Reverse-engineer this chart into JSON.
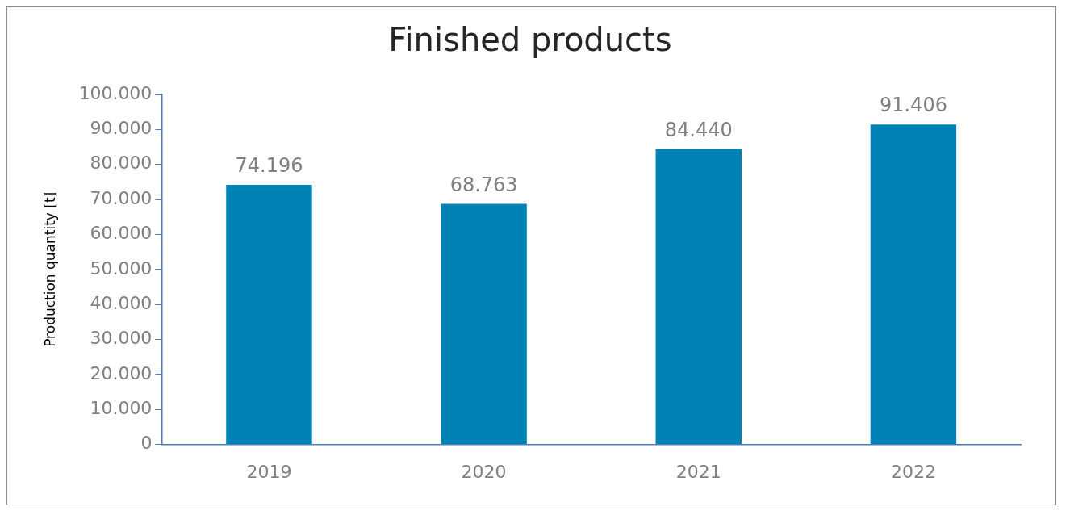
{
  "chart_data": {
    "type": "bar",
    "title": "Finished products",
    "ylabel": "Production quantity [t]",
    "categories": [
      "2019",
      "2020",
      "2021",
      "2022"
    ],
    "values": [
      74196,
      68763,
      84440,
      91406
    ],
    "value_labels": [
      "74.196",
      "68.763",
      "84.440",
      "91.406"
    ],
    "color": "#0082b4",
    "ylim": [
      0,
      100000
    ],
    "yticks": [
      0,
      {
        "value": 10000,
        "label": "10.000"
      },
      {
        "value": 20000,
        "label": "20.000"
      },
      {
        "value": 30000,
        "label": "30.000"
      },
      {
        "value": 40000,
        "label": "40.000"
      },
      {
        "value": 50000,
        "label": "50.000"
      },
      {
        "value": 60000,
        "label": "60.000"
      },
      {
        "value": 70000,
        "label": "70.000"
      },
      {
        "value": 80000,
        "label": "80.000"
      },
      {
        "value": 90000,
        "label": "90.000"
      },
      {
        "value": 100000,
        "label": "100.000"
      }
    ],
    "grid": false,
    "legend": false
  }
}
